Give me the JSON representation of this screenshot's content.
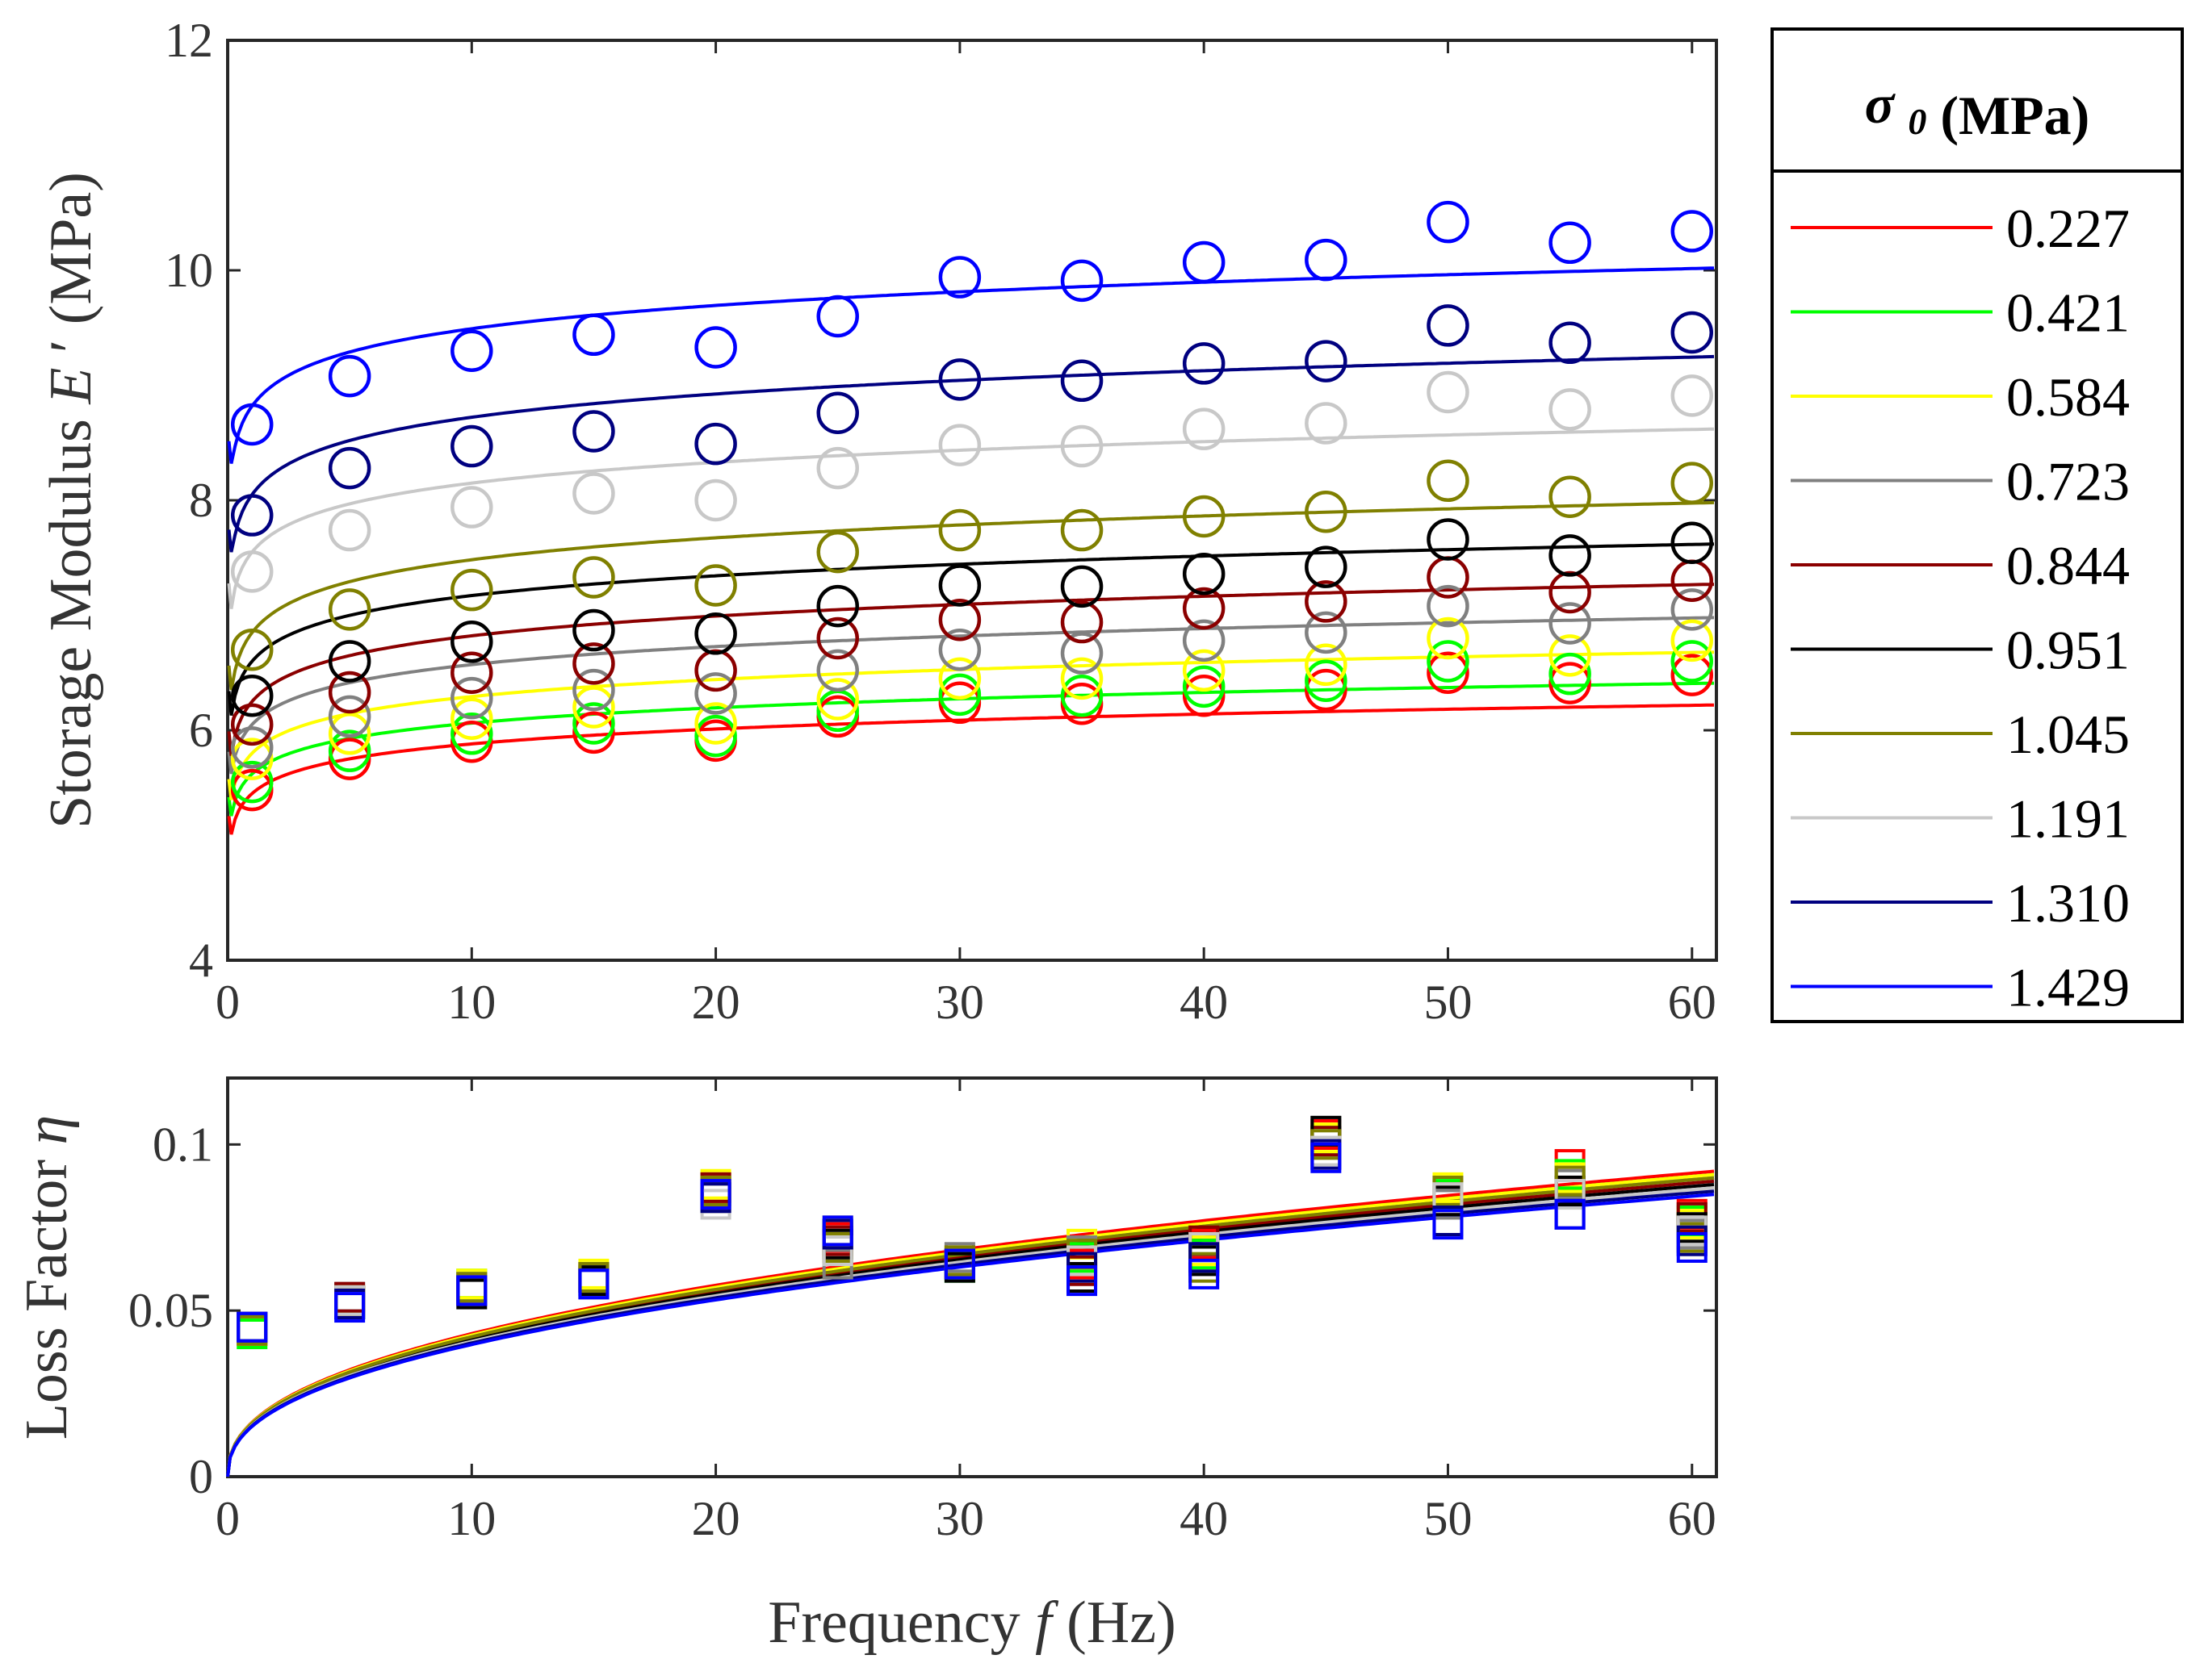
{
  "chart_data": [
    {
      "type": "line+scatter",
      "ylabel_main": "Storage Modulus",
      "ylabel_symbol": "E",
      "ylabel_prime": "′",
      "ylabel_unit": "(MPa)",
      "xlim": [
        0,
        61
      ],
      "ylim": [
        4,
        12
      ],
      "xticks": [
        "0",
        "10",
        "20",
        "30",
        "40",
        "50",
        "60"
      ],
      "yticks": [
        "4",
        "6",
        "8",
        "10",
        "12"
      ],
      "x": [
        1,
        5,
        10,
        15,
        20,
        25,
        30,
        35,
        40,
        45,
        50,
        55,
        60
      ],
      "series": [
        {
          "name": "0.227",
          "color": "#ff0000",
          "markers": [
            5.48,
            5.75,
            5.9,
            5.98,
            5.91,
            6.12,
            6.24,
            6.23,
            6.3,
            6.35,
            6.5,
            6.41,
            6.48
          ],
          "fit_at_1hz": 5.45,
          "fit_at_61hz": 6.22
        },
        {
          "name": "0.421",
          "color": "#00ff00",
          "markers": [
            5.55,
            5.82,
            5.97,
            6.06,
            5.95,
            6.17,
            6.31,
            6.3,
            6.38,
            6.43,
            6.6,
            6.49,
            6.6
          ],
          "fit_at_1hz": 5.62,
          "fit_at_61hz": 6.41
        },
        {
          "name": "0.584",
          "color": "#ffff00",
          "markers": [
            5.75,
            5.97,
            6.1,
            6.2,
            6.06,
            6.27,
            6.45,
            6.45,
            6.52,
            6.57,
            6.8,
            6.65,
            6.78
          ],
          "fit_at_1hz": 5.8,
          "fit_at_61hz": 6.68
        },
        {
          "name": "0.723",
          "color": "#808080",
          "markers": [
            5.85,
            6.12,
            6.28,
            6.35,
            6.32,
            6.52,
            6.7,
            6.67,
            6.78,
            6.85,
            7.08,
            6.93,
            7.05
          ],
          "fit_at_1hz": 6.05,
          "fit_at_61hz": 6.98
        },
        {
          "name": "0.844",
          "color": "#8b0000",
          "markers": [
            6.05,
            6.33,
            6.5,
            6.58,
            6.52,
            6.8,
            6.96,
            6.94,
            7.06,
            7.12,
            7.33,
            7.2,
            7.3
          ],
          "fit_at_1hz": 6.25,
          "fit_at_61hz": 7.27
        },
        {
          "name": "0.951",
          "color": "#000000",
          "markers": [
            6.3,
            6.6,
            6.77,
            6.87,
            6.84,
            7.08,
            7.26,
            7.25,
            7.36,
            7.42,
            7.66,
            7.52,
            7.63
          ],
          "fit_at_1hz": 6.6,
          "fit_at_61hz": 7.62
        },
        {
          "name": "1.045",
          "color": "#808000",
          "markers": [
            6.7,
            7.05,
            7.22,
            7.33,
            7.26,
            7.55,
            7.74,
            7.74,
            7.86,
            7.9,
            8.17,
            8.03,
            8.15
          ],
          "fit_at_1hz": 6.85,
          "fit_at_61hz": 7.98
        },
        {
          "name": "1.191",
          "color": "#c8c8c8",
          "markers": [
            7.38,
            7.74,
            7.94,
            8.06,
            8.0,
            8.28,
            8.48,
            8.47,
            8.62,
            8.67,
            8.94,
            8.79,
            8.91
          ],
          "fit_at_1hz": 7.55,
          "fit_at_61hz": 8.62
        },
        {
          "name": "1.310",
          "color": "#000080",
          "markers": [
            7.87,
            8.28,
            8.47,
            8.6,
            8.49,
            8.76,
            9.05,
            9.04,
            9.19,
            9.21,
            9.52,
            9.37,
            9.46
          ],
          "fit_at_1hz": 8.05,
          "fit_at_61hz": 9.25
        },
        {
          "name": "1.429",
          "color": "#0000ff",
          "markers": [
            8.66,
            9.08,
            9.3,
            9.44,
            9.33,
            9.6,
            9.94,
            9.91,
            10.07,
            10.09,
            10.42,
            10.24,
            10.34
          ],
          "fit_at_1hz": 8.82,
          "fit_at_61hz": 10.02
        }
      ]
    },
    {
      "type": "line+scatter",
      "ylabel_main": "Loss Factor",
      "ylabel_symbol": "η",
      "xlabel_main": "Frequency",
      "xlabel_symbol": "f",
      "xlabel_unit": "(Hz)",
      "xlim": [
        0,
        61
      ],
      "ylim": [
        0,
        0.12
      ],
      "xticks": [
        "0",
        "10",
        "20",
        "30",
        "40",
        "50",
        "60"
      ],
      "yticks": [
        "0",
        "0.05",
        "0.1"
      ],
      "x": [
        1,
        5,
        10,
        15,
        20,
        25,
        30,
        35,
        40,
        45,
        50,
        55,
        60
      ],
      "series": [
        {
          "name": "0.227",
          "color": "#ff0000",
          "markers": [
            0.044,
            0.053,
            0.057,
            0.06,
            0.087,
            0.072,
            0.064,
            0.064,
            0.07,
            0.103,
            0.086,
            0.094,
            0.079
          ],
          "fit_at_61hz": 0.092
        },
        {
          "name": "0.421",
          "color": "#00ff00",
          "markers": [
            0.043,
            0.052,
            0.058,
            0.06,
            0.086,
            0.073,
            0.063,
            0.066,
            0.067,
            0.101,
            0.085,
            0.091,
            0.077
          ],
          "fit_at_61hz": 0.091
        },
        {
          "name": "0.584",
          "color": "#ffff00",
          "markers": [
            0.044,
            0.053,
            0.058,
            0.061,
            0.088,
            0.074,
            0.065,
            0.07,
            0.068,
            0.102,
            0.087,
            0.09,
            0.076
          ],
          "fit_at_61hz": 0.091
        },
        {
          "name": "0.723",
          "color": "#808080",
          "markers": [
            0.045,
            0.054,
            0.057,
            0.059,
            0.085,
            0.064,
            0.066,
            0.068,
            0.066,
            0.104,
            0.082,
            0.088,
            0.073
          ],
          "fit_at_61hz": 0.09
        },
        {
          "name": "0.844",
          "color": "#8b0000",
          "markers": [
            0.045,
            0.054,
            0.056,
            0.06,
            0.087,
            0.071,
            0.064,
            0.062,
            0.071,
            0.101,
            0.084,
            0.086,
            0.078
          ],
          "fit_at_61hz": 0.089
        },
        {
          "name": "0.951",
          "color": "#000000",
          "markers": [
            0.045,
            0.052,
            0.055,
            0.059,
            0.084,
            0.07,
            0.063,
            0.06,
            0.065,
            0.104,
            0.083,
            0.086,
            0.075
          ],
          "fit_at_61hz": 0.088
        },
        {
          "name": "1.045",
          "color": "#808000",
          "markers": [
            0.044,
            0.053,
            0.057,
            0.06,
            0.086,
            0.069,
            0.065,
            0.067,
            0.063,
            0.1,
            0.086,
            0.089,
            0.072
          ],
          "fit_at_61hz": 0.09
        },
        {
          "name": "1.191",
          "color": "#c8c8c8",
          "markers": [
            0.045,
            0.053,
            0.056,
            0.058,
            0.082,
            0.068,
            0.064,
            0.065,
            0.069,
            0.098,
            0.084,
            0.085,
            0.074
          ],
          "fit_at_61hz": 0.087
        },
        {
          "name": "1.310",
          "color": "#000080",
          "markers": [
            0.045,
            0.052,
            0.056,
            0.058,
            0.084,
            0.073,
            0.064,
            0.063,
            0.066,
            0.097,
            0.077,
            0.079,
            0.071
          ],
          "fit_at_61hz": 0.086
        },
        {
          "name": "1.429",
          "color": "#0000ff",
          "markers": [
            0.045,
            0.051,
            0.056,
            0.058,
            0.085,
            0.074,
            0.064,
            0.059,
            0.061,
            0.096,
            0.076,
            0.079,
            0.069
          ],
          "fit_at_61hz": 0.085
        }
      ]
    }
  ],
  "legend": {
    "title_symbol": "σ",
    "title_sub": "0",
    "title_unit": "(MPa)",
    "placement": "right"
  }
}
